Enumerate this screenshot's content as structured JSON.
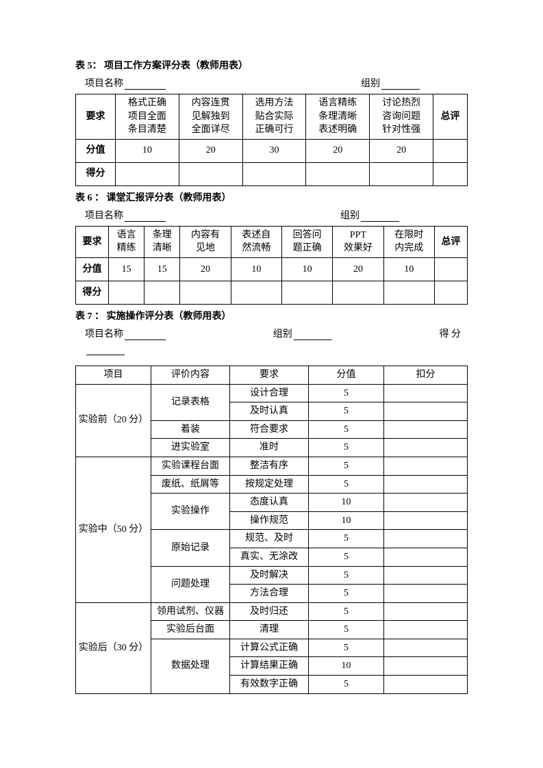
{
  "t5": {
    "title": "表 5：  项目工作方案评分表（教师用表）",
    "project_label": "项目名称",
    "group_label": "组别",
    "header_req": "要求",
    "cols": [
      [
        "格式正确",
        "项目全面",
        "条目清楚"
      ],
      [
        "内容连贯",
        "见解独到",
        "全面详尽"
      ],
      [
        "选用方法",
        "贴合实际",
        "正确可行"
      ],
      [
        "语言精练",
        "条理清晰",
        "表述明确"
      ],
      [
        "讨论热烈",
        "咨询问题",
        "针对性强"
      ]
    ],
    "total_label": "总评",
    "score_label": "分值",
    "scores": [
      "10",
      "20",
      "30",
      "20",
      "20"
    ],
    "got_label": "得分"
  },
  "t6": {
    "title": "表 6 ： 课堂汇报评分表（教师用表）",
    "project_label": "项目名称",
    "group_label": "组别",
    "header_req": "要求",
    "cols": [
      [
        "语言",
        "精练"
      ],
      [
        "条理",
        "清晰"
      ],
      [
        "内容有",
        "见地"
      ],
      [
        "表述自",
        "然流畅"
      ],
      [
        "回答问",
        "题正确"
      ],
      [
        "PPT",
        "效果好"
      ],
      [
        "在限时",
        "内完成"
      ]
    ],
    "total_label": "总评",
    "score_label": "分值",
    "scores": [
      "15",
      "15",
      "20",
      "10",
      "10",
      "20",
      "10"
    ],
    "got_label": "得分"
  },
  "t7": {
    "title": "表 7 ： 实施操作评分表（教师用表）",
    "project_label": "项目名称",
    "group_label": "组别",
    "score_label_end": "得 分",
    "headers": [
      "项目",
      "评价内容",
      "要求",
      "分值",
      "扣分"
    ],
    "sections": [
      {
        "name": "实验前（20 分）",
        "items": [
          {
            "content": "记录表格",
            "reqs": [
              [
                "设计合理",
                "5"
              ],
              [
                "及时认真",
                "5"
              ]
            ]
          },
          {
            "content": "着装",
            "reqs": [
              [
                "符合要求",
                "5"
              ]
            ]
          },
          {
            "content": "进实验室",
            "reqs": [
              [
                "准时",
                "5"
              ]
            ]
          }
        ]
      },
      {
        "name": "实验中（50 分）",
        "items": [
          {
            "content": "实验课程台面",
            "reqs": [
              [
                "整洁有序",
                "5"
              ]
            ]
          },
          {
            "content": "废纸、纸屑等",
            "reqs": [
              [
                "按规定处理",
                "5"
              ]
            ]
          },
          {
            "content": "实验操作",
            "reqs": [
              [
                "态度认真",
                "10"
              ],
              [
                "操作规范",
                "10"
              ]
            ]
          },
          {
            "content": "原始记录",
            "reqs": [
              [
                "规范、及时",
                "5"
              ],
              [
                "真实、无涂改",
                "5"
              ]
            ]
          },
          {
            "content": "问题处理",
            "reqs": [
              [
                "及时解决",
                "5"
              ],
              [
                "方法合理",
                "5"
              ]
            ]
          }
        ]
      },
      {
        "name": "实验后（30 分）",
        "items": [
          {
            "content": "领用试剂、仪器",
            "reqs": [
              [
                "及时归还",
                "5"
              ]
            ]
          },
          {
            "content": "实验后台面",
            "reqs": [
              [
                "清理",
                "5"
              ]
            ]
          },
          {
            "content": "数据处理",
            "reqs": [
              [
                "计算公式正确",
                "5"
              ],
              [
                "计算结果正确",
                "10"
              ],
              [
                "有效数字正确",
                "5"
              ]
            ]
          }
        ]
      }
    ]
  }
}
